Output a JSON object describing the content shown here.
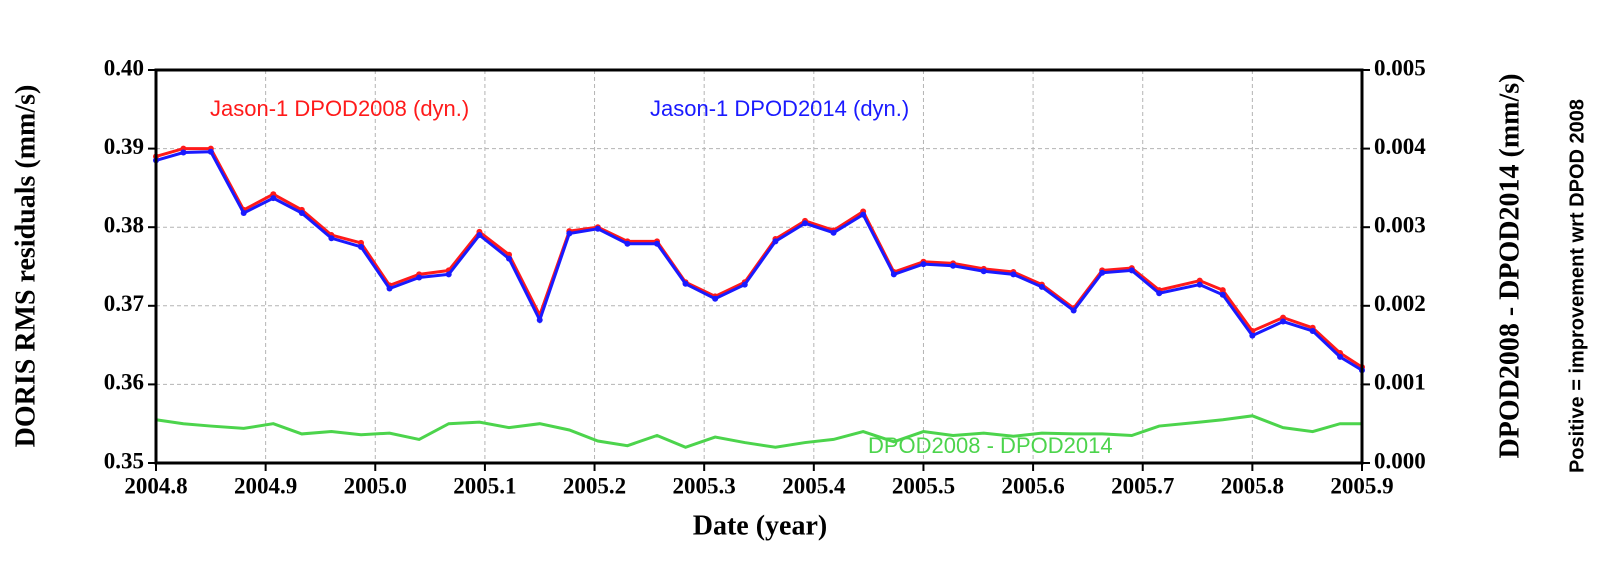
{
  "chart_data": {
    "type": "line",
    "x_label": "Date (year)",
    "y_label": "DORIS RMS residuals (mm/s)",
    "y2_label": "DPOD2008 - DPOD2014 (mm/s)",
    "y2_note": "Positive = improvement wrt DPOD 2008",
    "x": [
      2004.8,
      2004.825,
      2004.85,
      2004.88,
      2004.907,
      2004.933,
      2004.96,
      2004.987,
      2005.013,
      2005.04,
      2005.067,
      2005.095,
      2005.122,
      2005.15,
      2005.177,
      2005.203,
      2005.23,
      2005.257,
      2005.283,
      2005.31,
      2005.337,
      2005.365,
      2005.392,
      2005.418,
      2005.445,
      2005.473,
      2005.5,
      2005.527,
      2005.555,
      2005.582,
      2005.608,
      2005.637,
      2005.663,
      2005.69,
      2005.715,
      2005.752,
      2005.773,
      2005.8,
      2005.828,
      2005.855,
      2005.88,
      2005.9
    ],
    "series": [
      {
        "name": "Jason-1 DPOD2008 (dyn.)",
        "color": "#ff1a1a",
        "markers": true,
        "values": [
          0.389,
          0.39,
          0.39,
          0.3822,
          0.3842,
          0.3822,
          0.379,
          0.378,
          0.3726,
          0.374,
          0.3745,
          0.3794,
          0.3765,
          0.3688,
          0.3795,
          0.38,
          0.3782,
          0.3782,
          0.373,
          0.3712,
          0.373,
          0.3785,
          0.3808,
          0.3796,
          0.382,
          0.3743,
          0.3756,
          0.3754,
          0.3747,
          0.3743,
          0.3727,
          0.3697,
          0.3745,
          0.3748,
          0.372,
          0.3732,
          0.372,
          0.3668,
          0.3685,
          0.3672,
          0.364,
          0.3622
        ]
      },
      {
        "name": "Jason-1 DPOD2014 (dyn.)",
        "color": "#1a1aff",
        "markers": true,
        "values": [
          0.3885,
          0.3895,
          0.3896,
          0.3818,
          0.3837,
          0.3818,
          0.3786,
          0.3775,
          0.3722,
          0.3736,
          0.374,
          0.379,
          0.376,
          0.3682,
          0.3792,
          0.3798,
          0.3779,
          0.3779,
          0.3728,
          0.3709,
          0.3727,
          0.3782,
          0.3805,
          0.3793,
          0.3816,
          0.374,
          0.3753,
          0.3751,
          0.3744,
          0.374,
          0.3724,
          0.3694,
          0.3742,
          0.3745,
          0.3716,
          0.3727,
          0.3714,
          0.3662,
          0.368,
          0.3668,
          0.3635,
          0.3618
        ]
      },
      {
        "name": "DPOD2008 - DPOD2014",
        "color": "#4cd44c",
        "markers": false,
        "axis": "y2",
        "values": [
          0.00055,
          0.0005,
          0.00047,
          0.00044,
          0.0005,
          0.00037,
          0.0004,
          0.00036,
          0.00038,
          0.0003,
          0.0005,
          0.00052,
          0.00045,
          0.0005,
          0.00042,
          0.00028,
          0.00022,
          0.00035,
          0.0002,
          0.00033,
          0.00026,
          0.0002,
          0.00026,
          0.0003,
          0.0004,
          0.00027,
          0.0004,
          0.00035,
          0.00038,
          0.00034,
          0.00038,
          0.00037,
          0.00037,
          0.00035,
          0.00047,
          0.00052,
          0.00055,
          0.0006,
          0.00045,
          0.0004,
          0.0005,
          0.0005
        ]
      }
    ],
    "xlim": [
      2004.8,
      2005.9
    ],
    "xticks": [
      {
        "value": 2004.8,
        "label": "2004.8"
      },
      {
        "value": 2004.9,
        "label": "2004.9"
      },
      {
        "value": 2005.0,
        "label": "2005.0"
      },
      2005.1,
      2005.2,
      2005.3,
      2005.4,
      2005.5,
      2005.6,
      2005.7,
      2005.8,
      2005.9
    ],
    "ylim": [
      0.35,
      0.4
    ],
    "yticks": [
      0.35,
      0.36,
      0.37,
      0.38,
      0.39,
      {
        "value": 0.4,
        "label": "0.40"
      }
    ],
    "y2lim": [
      0,
      0.005
    ],
    "y2ticks": [
      {
        "value": 0,
        "label": "0.000"
      },
      0.001,
      0.002,
      0.003,
      0.004,
      0.005
    ],
    "grid": true
  }
}
